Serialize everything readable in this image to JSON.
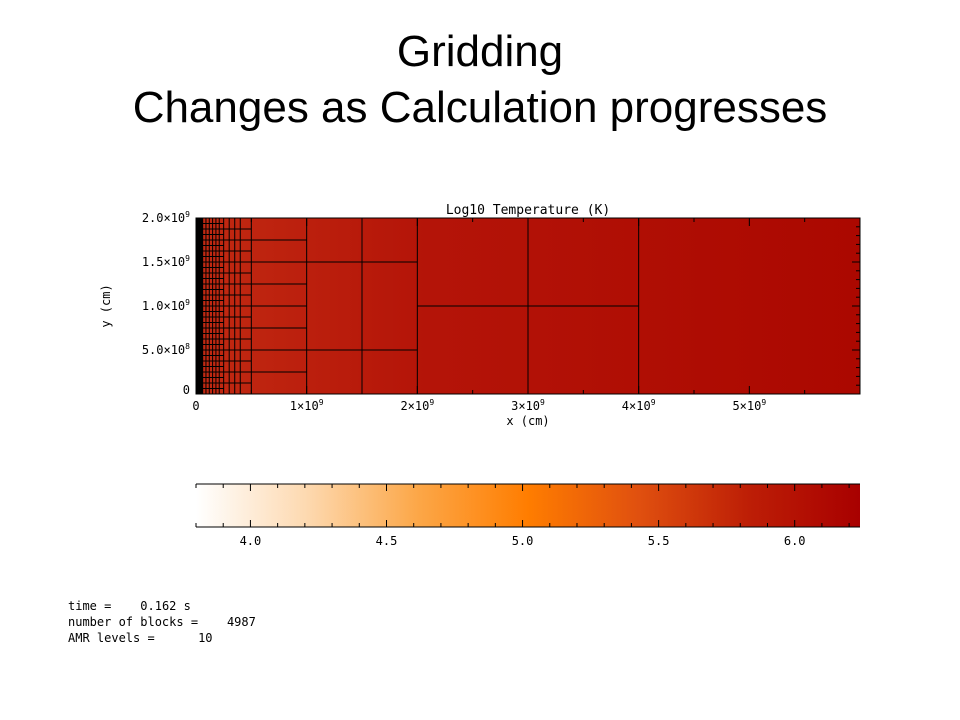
{
  "slide": {
    "title_line1": "Gridding",
    "title_line2": "Changes as Calculation progresses"
  },
  "plot": {
    "title": "Log10 Temperature (K)",
    "xlabel": "x (cm)",
    "ylabel": "y (cm)",
    "x_ticks": [
      {
        "value": 0,
        "mant": "0",
        "exp": ""
      },
      {
        "value": 1,
        "mant": "1×10",
        "exp": "9"
      },
      {
        "value": 2,
        "mant": "2×10",
        "exp": "9"
      },
      {
        "value": 3,
        "mant": "3×10",
        "exp": "9"
      },
      {
        "value": 4,
        "mant": "4×10",
        "exp": "9"
      },
      {
        "value": 5,
        "mant": "5×10",
        "exp": "9"
      }
    ],
    "y_ticks": [
      {
        "value": 0,
        "mant": "0",
        "exp": ""
      },
      {
        "value": 0.5,
        "mant": "5.0×10",
        "exp": "8"
      },
      {
        "value": 1.0,
        "mant": "1.0×10",
        "exp": "9"
      },
      {
        "value": 1.5,
        "mant": "1.5×10",
        "exp": "9"
      },
      {
        "value": 2.0,
        "mant": "2.0×10",
        "exp": "9"
      }
    ],
    "x_range_1e9": [
      0,
      6.0
    ],
    "y_range_1e9": [
      0,
      2.0
    ],
    "field_color": "#ad0a00",
    "grid_color": "#000000",
    "block_edges_x_1e9": [
      0.5,
      1.0,
      1.5,
      2.0,
      3.0,
      4.0
    ],
    "fine_x_columns_1e9": [
      0.03,
      0.06,
      0.09,
      0.12,
      0.15,
      0.18,
      0.21,
      0.25,
      0.3,
      0.35,
      0.4
    ]
  },
  "colorbar": {
    "min": 3.8,
    "max": 6.24,
    "ticks": [
      "4.0",
      "4.5",
      "5.0",
      "5.5",
      "6.0"
    ],
    "tick_values": [
      4.0,
      4.5,
      5.0,
      5.5,
      6.0
    ],
    "stops": [
      "#ffffff",
      "#fdd9b0",
      "#fca748",
      "#ff7d00",
      "#e0500f",
      "#bd1e06",
      "#a80000"
    ]
  },
  "stats": {
    "time_label": "time =",
    "time_value": "0.162 s",
    "blocks_label": "number of blocks =",
    "blocks_value": "4987",
    "levels_label": "AMR levels =",
    "levels_value": "10"
  }
}
